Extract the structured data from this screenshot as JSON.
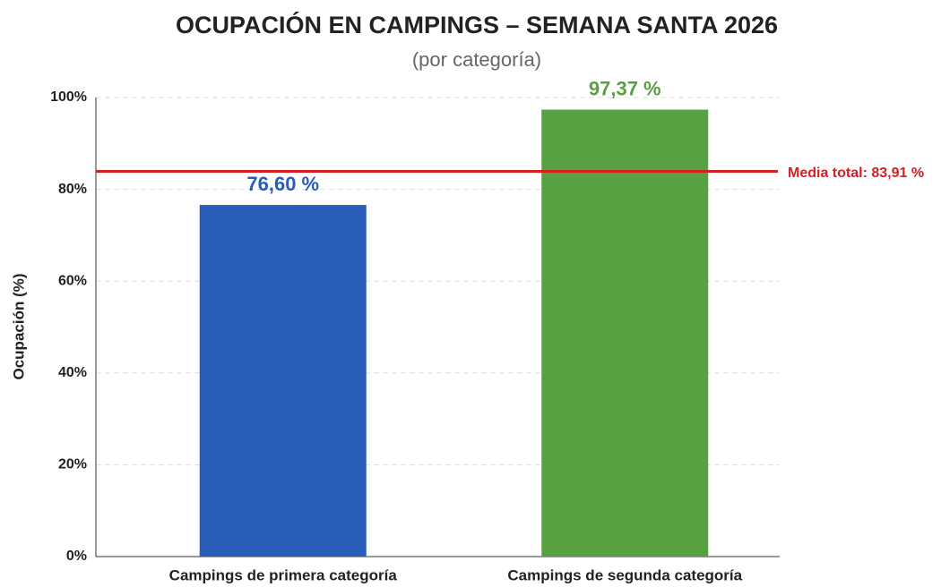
{
  "chart_data": {
    "type": "bar",
    "title": "OCUPACIÓN EN CAMPINGS – SEMANA SANTA 2026",
    "subtitle": "(por categoría)",
    "y_label": "Ocupación (%)",
    "categories": [
      "Campings de primera categoría",
      "Campings de segunda categoría"
    ],
    "values": [
      76.6,
      97.37
    ],
    "value_labels": [
      "76,60 %",
      "97,37 %"
    ],
    "colors": [
      "#2a5db8",
      "#57a143"
    ],
    "ylim": [
      0,
      100
    ],
    "yticks": [
      {
        "value": 0,
        "label": "0%"
      },
      {
        "value": 20,
        "label": "20%"
      },
      {
        "value": 40,
        "label": "40%"
      },
      {
        "value": 60,
        "label": "60%"
      },
      {
        "value": 80,
        "label": "80%"
      },
      {
        "value": 100,
        "label": "100%"
      }
    ],
    "grid": true,
    "reference_line": {
      "value": 83.91,
      "label": "Media total: 83,91 %",
      "color": "#d42020"
    }
  }
}
